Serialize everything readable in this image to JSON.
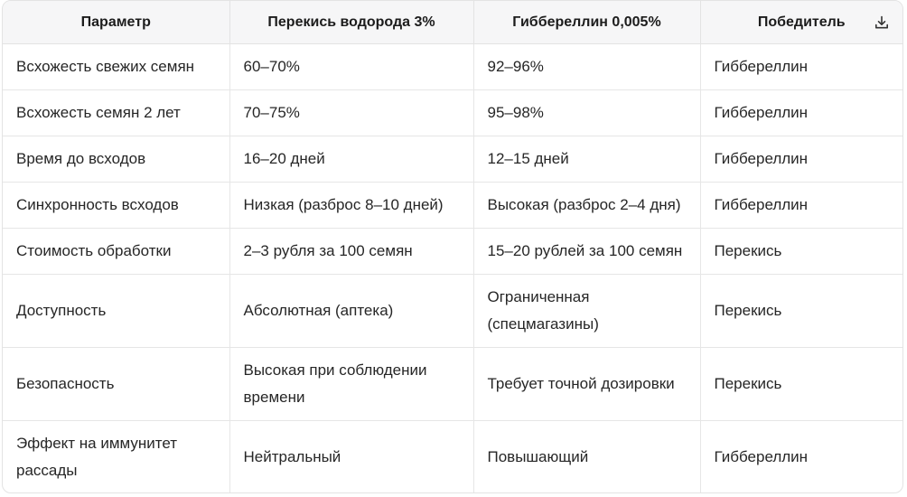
{
  "table": {
    "headers": [
      "Параметр",
      "Перекись водорода 3%",
      "Гиббереллин 0,005%",
      "Победитель"
    ],
    "download_icon": "download-icon",
    "rows": [
      [
        "Всхожесть свежих семян",
        "60–70%",
        "92–96%",
        "Гиббереллин"
      ],
      [
        "Всхожесть семян 2 лет",
        "70–75%",
        "95–98%",
        "Гиббереллин"
      ],
      [
        "Время до всходов",
        "16–20 дней",
        "12–15 дней",
        "Гиббереллин"
      ],
      [
        "Синхронность всходов",
        "Низкая (разброс 8–10 дней)",
        "Высокая (разброс 2–4 дня)",
        "Гиббереллин"
      ],
      [
        "Стоимость обработки",
        "2–3 рубля за 100 семян",
        "15–20 рублей за 100 семян",
        "Перекись"
      ],
      [
        "Доступность",
        "Абсолютная (аптека)",
        "Ограниченная (спецмагазины)",
        "Перекись"
      ],
      [
        "Безопасность",
        "Высокая при соблюдении времени",
        "Требует точной дозировки",
        "Перекись"
      ],
      [
        "Эффект на иммунитет рассады",
        "Нейтральный",
        "Повышающий",
        "Гиббереллин"
      ]
    ]
  }
}
